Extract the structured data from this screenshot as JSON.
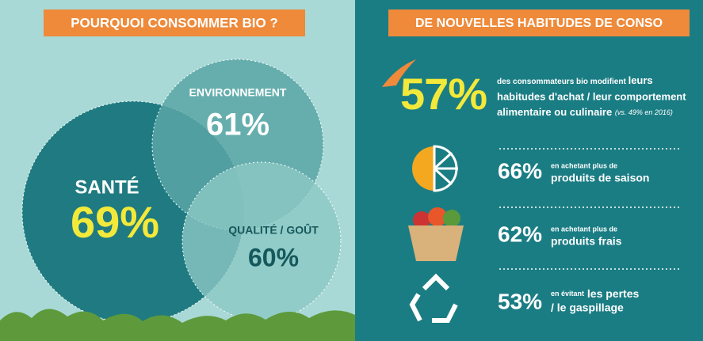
{
  "left": {
    "title": "POURQUOI CONSOMMER BIO ?",
    "circles": [
      {
        "label": "SANTÉ",
        "value": "69%"
      },
      {
        "label": "ENVIRONNEMENT",
        "value": "61%"
      },
      {
        "label": "QUALITÉ / GOÛT",
        "value": "60%"
      }
    ]
  },
  "right": {
    "title": "DE NOUVELLES HABITUDES DE CONSO",
    "headline": {
      "value": "57%",
      "intro": "des consommateurs bio modifient",
      "lines": [
        "leurs",
        "habitudes d'achat / leur comportement",
        "alimentaire ou culinaire"
      ],
      "note": "(vs. 49% en 2016)"
    },
    "items": [
      {
        "value": "66%",
        "small": "en achetant plus de",
        "lines": [
          "produits de saison"
        ]
      },
      {
        "value": "62%",
        "small": "en achetant plus de",
        "lines": [
          "produits frais"
        ]
      },
      {
        "value": "53%",
        "small": "en évitant",
        "lines": [
          "les pertes",
          "/ le gaspillage"
        ]
      }
    ]
  }
}
